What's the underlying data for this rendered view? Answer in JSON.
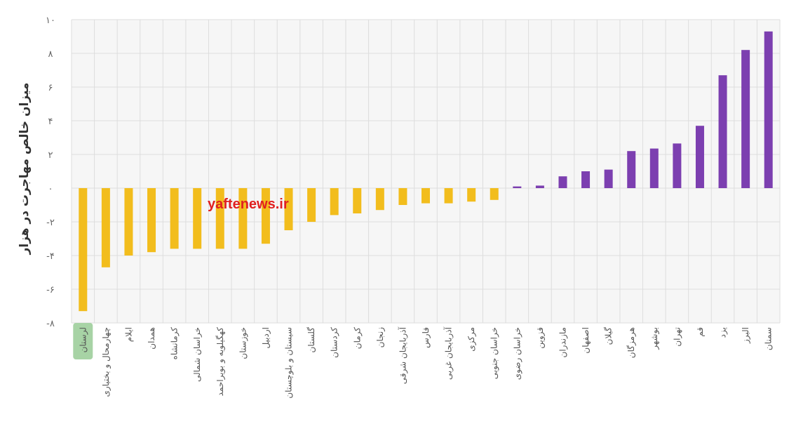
{
  "chart_data": {
    "type": "bar",
    "ylabel": "میزان خالص مهاجرت در هزار",
    "ylim": [
      -8,
      10
    ],
    "yticks": [
      10,
      8,
      6,
      4,
      2,
      0,
      -2,
      -4,
      -6,
      -8
    ],
    "ytick_labels": [
      "۱۰",
      "۸",
      "۶",
      "۴",
      "۲",
      "۰",
      "-۲",
      "-۴",
      "-۶",
      "-۸"
    ],
    "grid": true,
    "highlighted_category": "لرستان",
    "categories": [
      "لرستان",
      "چهارمحال و بختیاری",
      "ایلام",
      "همدان",
      "کرمانشاه",
      "خراسان شمالی",
      "کهگیلویه و بویراحمد",
      "خوزستان",
      "اردبیل",
      "سیستان و بلوچستان",
      "گلستان",
      "کردستان",
      "کرمان",
      "زنجان",
      "آذربایجان شرقی",
      "فارس",
      "آذربایجان غربی",
      "مرکزی",
      "خراسان جنوبی",
      "خراسان رضوی",
      "قزوین",
      "مازندران",
      "اصفهان",
      "گیلان",
      "هرمزگان",
      "بوشهر",
      "تهران",
      "قم",
      "یزد",
      "البرز",
      "سمنان"
    ],
    "values": [
      -7.3,
      -4.7,
      -4.0,
      -3.8,
      -3.6,
      -3.6,
      -3.6,
      -3.6,
      -3.3,
      -2.5,
      -2.0,
      -1.6,
      -1.5,
      -1.3,
      -1.0,
      -0.9,
      -0.9,
      -0.8,
      -0.7,
      0.1,
      0.15,
      0.7,
      1.0,
      1.1,
      2.2,
      2.35,
      2.65,
      3.7,
      6.7,
      8.2,
      9.3
    ],
    "colors": {
      "negative": "#f2bd1d",
      "positive": "#7c3fb0",
      "highlight": "#a7d3a5"
    }
  },
  "watermark": "yaftenews.ir"
}
